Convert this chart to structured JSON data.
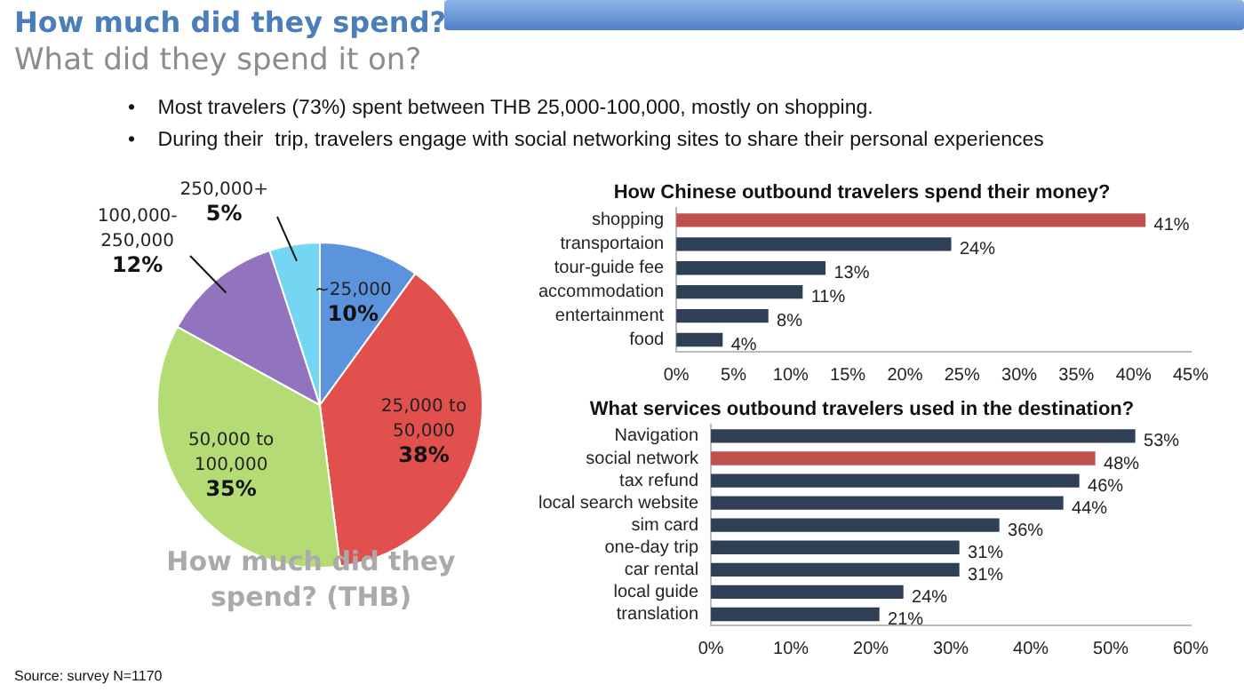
{
  "chart_data": [
    {
      "type": "pie",
      "title": "How much did they spend? (THB)",
      "categories": [
        "~25,000",
        "25,000 to 50,000",
        "50,000 to 100,000",
        "100,000-250,000",
        "250,000+"
      ],
      "values": [
        10,
        38,
        35,
        12,
        5
      ],
      "value_labels": [
        "10%",
        "38%",
        "35%",
        "12%",
        "5%"
      ],
      "colors": [
        "#5b93dc",
        "#e2504e",
        "#b5dc74",
        "#9274be",
        "#74d6f2"
      ],
      "annotations": [
        "How much did they spend?",
        "What did they spend it on?",
        "•    Most travelers (73%) spent between THB 25,000-100,000, mostly on shopping.",
        "•    During their  trip, travelers engage with social networking sites to share their personal experiences",
        "Source:  survey N=1170"
      ]
    },
    {
      "type": "bar",
      "orientation": "horizontal",
      "title": "How Chinese outbound travelers spend their money?",
      "categories": [
        "shopping",
        "transportaion",
        "tour-guide fee",
        "accommodation",
        "entertainment",
        "food"
      ],
      "values": [
        41,
        24,
        13,
        11,
        8,
        4
      ],
      "value_labels": [
        "41%",
        "24%",
        "13%",
        "11%",
        "8%",
        "4%"
      ],
      "colors": [
        "#c0504d",
        "#2f3f55",
        "#2f3f55",
        "#2f3f55",
        "#2f3f55",
        "#2f3f55"
      ],
      "xlim": [
        0,
        45
      ],
      "xticks": [
        {
          "value": 0,
          "label": "0%"
        },
        {
          "value": 5,
          "label": "5%"
        },
        {
          "value": 10,
          "label": "10%"
        },
        {
          "value": 15,
          "label": "15%"
        },
        {
          "value": 20,
          "label": "20%"
        },
        {
          "value": 25,
          "label": "25%"
        },
        {
          "value": 30,
          "label": "30%"
        },
        {
          "value": 35,
          "label": "35%"
        },
        {
          "value": 40,
          "label": "40%"
        },
        {
          "value": 45,
          "label": "45%"
        }
      ]
    },
    {
      "type": "bar",
      "orientation": "horizontal",
      "title": "What services outbound travelers used in the destination?",
      "categories": [
        "Navigation",
        "social network",
        "tax refund",
        "local search website",
        "sim card",
        "one-day trip",
        "car rental",
        "local guide",
        "translation"
      ],
      "values": [
        53,
        48,
        46,
        44,
        36,
        31,
        31,
        24,
        21
      ],
      "value_labels": [
        "53%",
        "48%",
        "46%",
        "44%",
        "36%",
        "31%",
        "31%",
        "24%",
        "21%"
      ],
      "colors": [
        "#2f3f55",
        "#c0504d",
        "#2f3f55",
        "#2f3f55",
        "#2f3f55",
        "#2f3f55",
        "#2f3f55",
        "#2f3f55",
        "#2f3f55"
      ],
      "xlim": [
        0,
        60
      ],
      "xticks": [
        {
          "value": 0,
          "label": "0%"
        },
        {
          "value": 10,
          "label": "10%"
        },
        {
          "value": 20,
          "label": "20%"
        },
        {
          "value": 30,
          "label": "30%"
        },
        {
          "value": 40,
          "label": "40%"
        },
        {
          "value": 50,
          "label": "50%"
        },
        {
          "value": 60,
          "label": "60%"
        }
      ]
    }
  ]
}
